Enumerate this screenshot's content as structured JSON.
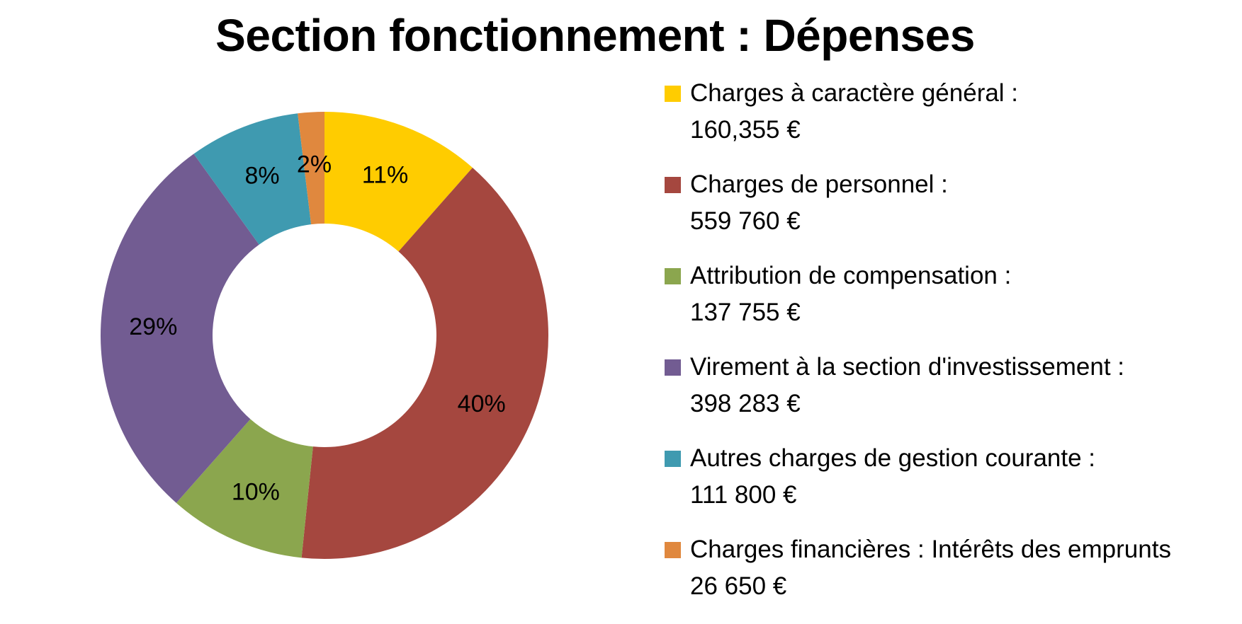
{
  "chart_data": {
    "type": "pie",
    "title": "Section fonctionnement : Dépenses",
    "categories": [
      "Charges à caractère général :",
      "Charges de personnel :",
      "Attribution de compensation :",
      "Virement à la section d'investissement :",
      "Autres charges de gestion courante  :",
      "Charges financières : Intérêts des emprunts"
    ],
    "amounts": [
      "160,355 €",
      "559 760 €",
      "137 755 €",
      "398 283 €",
      "111 800 €",
      "26 650 €"
    ],
    "values": [
      160355,
      559760,
      137755,
      398283,
      111800,
      26650
    ],
    "data_labels": [
      "11%",
      "40%",
      "10%",
      "29%",
      "8%",
      "2%"
    ],
    "colors": [
      "#FFCC00",
      "#A5473F",
      "#8BA64E",
      "#725C92",
      "#3F9AB0",
      "#E0883E"
    ],
    "donut": true,
    "legend_position": "right"
  }
}
